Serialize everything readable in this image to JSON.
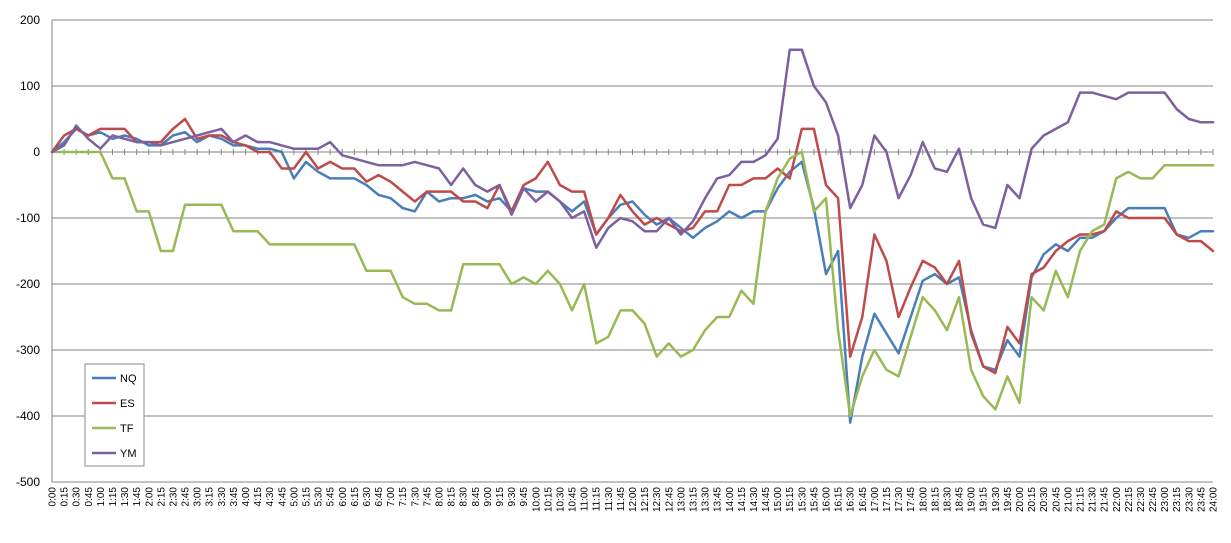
{
  "chart_data": {
    "type": "line",
    "title": "",
    "xlabel": "",
    "ylabel": "",
    "ylim": [
      -500,
      200
    ],
    "yticks": [
      200,
      100,
      0,
      -100,
      -200,
      -300,
      -400,
      -500
    ],
    "grid": "horizontal",
    "legend_position": "bottom-left",
    "x": [
      "0:00",
      "0:15",
      "0:30",
      "0:45",
      "1:00",
      "1:15",
      "1:30",
      "1:45",
      "2:00",
      "2:15",
      "2:30",
      "2:45",
      "3:00",
      "3:15",
      "3:30",
      "3:45",
      "4:00",
      "4:15",
      "4:30",
      "4:45",
      "5:00",
      "5:15",
      "5:30",
      "5:45",
      "6:00",
      "6:15",
      "6:30",
      "6:45",
      "7:00",
      "7:15",
      "7:30",
      "7:45",
      "8:00",
      "8:15",
      "8:30",
      "8:45",
      "9:00",
      "9:15",
      "9:30",
      "9:45",
      "10:00",
      "10:15",
      "10:30",
      "10:45",
      "11:00",
      "11:15",
      "11:30",
      "11:45",
      "12:00",
      "12:15",
      "12:30",
      "12:45",
      "13:00",
      "13:15",
      "13:30",
      "13:45",
      "14:00",
      "14:15",
      "14:30",
      "14:45",
      "15:00",
      "15:15",
      "15:30",
      "15:45",
      "16:00",
      "16:15",
      "16:30",
      "16:45",
      "17:00",
      "17:15",
      "17:30",
      "17:45",
      "18:00",
      "18:15",
      "18:30",
      "18:45",
      "19:00",
      "19:15",
      "19:30",
      "19:45",
      "20:00",
      "20:15",
      "20:30",
      "20:45",
      "21:00",
      "21:15",
      "21:30",
      "21:45",
      "22:00",
      "22:15",
      "22:30",
      "22:45",
      "23:00",
      "23:15",
      "23:30",
      "23:45",
      "24:00"
    ],
    "series": [
      {
        "name": "NQ",
        "color": "#4a7ebb",
        "values": [
          0,
          15,
          35,
          25,
          30,
          20,
          25,
          20,
          10,
          10,
          25,
          30,
          15,
          25,
          20,
          10,
          10,
          5,
          5,
          0,
          -40,
          -15,
          -30,
          -40,
          -40,
          -40,
          -50,
          -65,
          -70,
          -85,
          -90,
          -60,
          -75,
          -70,
          -70,
          -65,
          -75,
          -70,
          -90,
          -55,
          -60,
          -60,
          -75,
          -90,
          -75,
          -125,
          -100,
          -80,
          -75,
          -95,
          -110,
          -100,
          -115,
          -130,
          -115,
          -105,
          -90,
          -100,
          -90,
          -90,
          -55,
          -30,
          -15,
          -85,
          -185,
          -150,
          -410,
          -310,
          -245,
          -275,
          -305,
          -250,
          -195,
          -185,
          -200,
          -190,
          -270,
          -325,
          -330,
          -285,
          -310,
          -190,
          -155,
          -140,
          -150,
          -130,
          -130,
          -120,
          -100,
          -85,
          -85,
          -85,
          -85,
          -125,
          -130,
          -120,
          -120
        ]
      },
      {
        "name": "ES",
        "color": "#be4b48",
        "values": [
          0,
          25,
          35,
          25,
          35,
          35,
          35,
          15,
          15,
          15,
          35,
          50,
          20,
          25,
          25,
          15,
          10,
          0,
          0,
          -25,
          -25,
          0,
          -25,
          -15,
          -25,
          -25,
          -45,
          -35,
          -45,
          -60,
          -75,
          -60,
          -60,
          -60,
          -75,
          -75,
          -85,
          -50,
          -90,
          -50,
          -40,
          -15,
          -50,
          -60,
          -60,
          -125,
          -100,
          -65,
          -90,
          -110,
          -100,
          -110,
          -120,
          -115,
          -90,
          -90,
          -50,
          -50,
          -40,
          -40,
          -25,
          -40,
          35,
          35,
          -50,
          -70,
          -310,
          -250,
          -125,
          -165,
          -250,
          -205,
          -165,
          -175,
          -200,
          -165,
          -275,
          -325,
          -335,
          -265,
          -290,
          -185,
          -175,
          -150,
          -135,
          -125,
          -125,
          -120,
          -90,
          -100,
          -100,
          -100,
          -100,
          -125,
          -135,
          -135,
          -150
        ]
      },
      {
        "name": "TF",
        "color": "#98b954",
        "values": [
          0,
          0,
          0,
          0,
          0,
          -40,
          -40,
          -90,
          -90,
          -150,
          -150,
          -80,
          -80,
          -80,
          -80,
          -120,
          -120,
          -120,
          -140,
          -140,
          -140,
          -140,
          -140,
          -140,
          -140,
          -140,
          -180,
          -180,
          -180,
          -220,
          -230,
          -230,
          -240,
          -240,
          -170,
          -170,
          -170,
          -170,
          -200,
          -190,
          -200,
          -180,
          -200,
          -240,
          -200,
          -290,
          -280,
          -240,
          -240,
          -260,
          -310,
          -290,
          -310,
          -300,
          -270,
          -250,
          -250,
          -210,
          -230,
          -90,
          -40,
          -10,
          0,
          -90,
          -70,
          -270,
          -400,
          -340,
          -300,
          -330,
          -340,
          -280,
          -220,
          -240,
          -270,
          -220,
          -330,
          -370,
          -390,
          -340,
          -380,
          -220,
          -240,
          -180,
          -220,
          -150,
          -120,
          -110,
          -40,
          -30,
          -40,
          -40,
          -20,
          -20,
          -20,
          -20,
          -20
        ]
      },
      {
        "name": "YM",
        "color": "#7d60a0",
        "values": [
          0,
          10,
          40,
          20,
          5,
          25,
          20,
          15,
          15,
          10,
          15,
          20,
          25,
          30,
          35,
          15,
          25,
          15,
          15,
          10,
          5,
          5,
          5,
          15,
          -5,
          -10,
          -15,
          -20,
          -20,
          -20,
          -15,
          -20,
          -25,
          -50,
          -25,
          -50,
          -60,
          -50,
          -95,
          -55,
          -75,
          -60,
          -75,
          -100,
          -90,
          -145,
          -115,
          -100,
          -105,
          -120,
          -120,
          -100,
          -125,
          -105,
          -70,
          -40,
          -35,
          -15,
          -15,
          -5,
          20,
          155,
          155,
          100,
          75,
          25,
          -85,
          -50,
          25,
          0,
          -70,
          -35,
          15,
          -25,
          -30,
          5,
          -70,
          -110,
          -115,
          -50,
          -70,
          5,
          25,
          35,
          45,
          90,
          90,
          85,
          80,
          90,
          90,
          90,
          90,
          65,
          50,
          45,
          45
        ]
      }
    ]
  }
}
